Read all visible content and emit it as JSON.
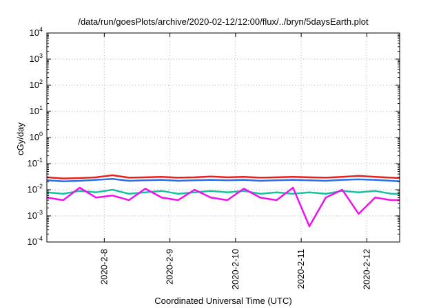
{
  "chart_data": {
    "type": "line",
    "title": "/data/run/goesPlots/archive/2020-02-12/12:00/flux/../bryn/5daysEarth.plot",
    "xlabel": "Coordinated Universal Time (UTC)",
    "ylabel": "cGy/day",
    "yscale": "log",
    "ylim": [
      0.0001,
      10000
    ],
    "xlim": [
      "2020-02-07 03:00",
      "2020-02-12 12:00"
    ],
    "grid": true,
    "legend": "none",
    "y_ticks": [
      {
        "base": "10",
        "exp": "-4",
        "value": 0.0001
      },
      {
        "base": "10",
        "exp": "-3",
        "value": 0.001
      },
      {
        "base": "10",
        "exp": "-2",
        "value": 0.01
      },
      {
        "base": "10",
        "exp": "-1",
        "value": 0.1
      },
      {
        "base": "10",
        "exp": "0",
        "value": 1
      },
      {
        "base": "10",
        "exp": "1",
        "value": 10
      },
      {
        "base": "10",
        "exp": "2",
        "value": 100
      },
      {
        "base": "10",
        "exp": "3",
        "value": 1000
      },
      {
        "base": "10",
        "exp": "4",
        "value": 10000
      }
    ],
    "x_ticks": [
      {
        "label": "2020-2-8",
        "value": "2020-02-08 00:00"
      },
      {
        "label": "2020-2-9",
        "value": "2020-02-09 00:00"
      },
      {
        "label": "2020-2-10",
        "value": "2020-02-10 00:00"
      },
      {
        "label": "2020-2-11",
        "value": "2020-02-11 00:00"
      },
      {
        "label": "2020-2-12",
        "value": "2020-02-12 00:00"
      }
    ],
    "series": [
      {
        "color": "#e8201c",
        "x": [
          "2020-02-07 03:00",
          "2020-02-07 09:00",
          "2020-02-07 15:00",
          "2020-02-07 21:00",
          "2020-02-08 03:00",
          "2020-02-08 09:00",
          "2020-02-08 15:00",
          "2020-02-08 21:00",
          "2020-02-09 03:00",
          "2020-02-09 09:00",
          "2020-02-09 15:00",
          "2020-02-09 21:00",
          "2020-02-10 03:00",
          "2020-02-10 09:00",
          "2020-02-10 15:00",
          "2020-02-10 21:00",
          "2020-02-11 03:00",
          "2020-02-11 09:00",
          "2020-02-11 15:00",
          "2020-02-11 21:00",
          "2020-02-12 03:00",
          "2020-02-12 09:00",
          "2020-02-12 12:00"
        ],
        "y": [
          0.03,
          0.027,
          0.028,
          0.03,
          0.036,
          0.029,
          0.03,
          0.031,
          0.029,
          0.03,
          0.032,
          0.03,
          0.031,
          0.029,
          0.03,
          0.031,
          0.03,
          0.029,
          0.031,
          0.034,
          0.031,
          0.029,
          0.028
        ]
      },
      {
        "color": "#2a6ee8",
        "x": [
          "2020-02-07 03:00",
          "2020-02-07 09:00",
          "2020-02-07 15:00",
          "2020-02-07 21:00",
          "2020-02-08 03:00",
          "2020-02-08 09:00",
          "2020-02-08 15:00",
          "2020-02-08 21:00",
          "2020-02-09 03:00",
          "2020-02-09 09:00",
          "2020-02-09 15:00",
          "2020-02-09 21:00",
          "2020-02-10 03:00",
          "2020-02-10 09:00",
          "2020-02-10 15:00",
          "2020-02-10 21:00",
          "2020-02-11 03:00",
          "2020-02-11 09:00",
          "2020-02-11 15:00",
          "2020-02-11 21:00",
          "2020-02-12 03:00",
          "2020-02-12 09:00",
          "2020-02-12 12:00"
        ],
        "y": [
          0.023,
          0.021,
          0.022,
          0.024,
          0.026,
          0.022,
          0.023,
          0.024,
          0.022,
          0.023,
          0.024,
          0.023,
          0.024,
          0.022,
          0.023,
          0.024,
          0.023,
          0.022,
          0.024,
          0.025,
          0.024,
          0.022,
          0.021
        ]
      },
      {
        "color": "#16c2a0",
        "x": [
          "2020-02-07 03:00",
          "2020-02-07 09:00",
          "2020-02-07 15:00",
          "2020-02-07 21:00",
          "2020-02-08 03:00",
          "2020-02-08 09:00",
          "2020-02-08 15:00",
          "2020-02-08 21:00",
          "2020-02-09 03:00",
          "2020-02-09 09:00",
          "2020-02-09 15:00",
          "2020-02-09 21:00",
          "2020-02-10 03:00",
          "2020-02-10 09:00",
          "2020-02-10 15:00",
          "2020-02-10 21:00",
          "2020-02-11 03:00",
          "2020-02-11 09:00",
          "2020-02-11 15:00",
          "2020-02-11 21:00",
          "2020-02-12 03:00",
          "2020-02-12 09:00",
          "2020-02-12 12:00"
        ],
        "y": [
          0.008,
          0.007,
          0.009,
          0.008,
          0.01,
          0.007,
          0.008,
          0.009,
          0.007,
          0.008,
          0.009,
          0.008,
          0.009,
          0.007,
          0.008,
          0.007,
          0.008,
          0.007,
          0.009,
          0.008,
          0.009,
          0.007,
          0.007
        ]
      },
      {
        "color": "#ee10ee",
        "x": [
          "2020-02-07 03:00",
          "2020-02-07 09:00",
          "2020-02-07 15:00",
          "2020-02-07 21:00",
          "2020-02-08 03:00",
          "2020-02-08 09:00",
          "2020-02-08 15:00",
          "2020-02-08 21:00",
          "2020-02-09 03:00",
          "2020-02-09 09:00",
          "2020-02-09 15:00",
          "2020-02-09 21:00",
          "2020-02-10 03:00",
          "2020-02-10 09:00",
          "2020-02-10 15:00",
          "2020-02-10 21:00",
          "2020-02-11 03:00",
          "2020-02-11 09:00",
          "2020-02-11 15:00",
          "2020-02-11 21:00",
          "2020-02-12 03:00",
          "2020-02-12 09:00",
          "2020-02-12 12:00"
        ],
        "y": [
          0.005,
          0.004,
          0.012,
          0.005,
          0.006,
          0.004,
          0.011,
          0.005,
          0.004,
          0.01,
          0.005,
          0.004,
          0.011,
          0.005,
          0.004,
          0.012,
          0.0004,
          0.005,
          0.01,
          0.0012,
          0.005,
          0.004,
          0.004
        ]
      }
    ]
  }
}
